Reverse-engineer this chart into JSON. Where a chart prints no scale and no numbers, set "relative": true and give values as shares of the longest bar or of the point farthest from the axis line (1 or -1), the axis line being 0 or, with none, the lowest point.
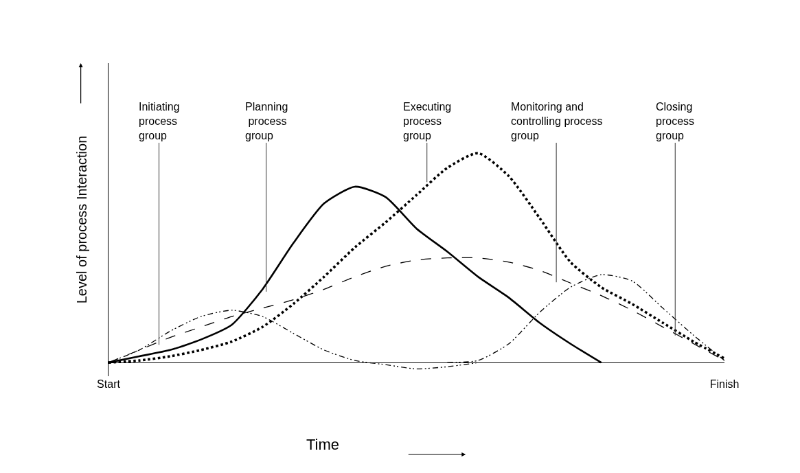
{
  "chart_data": {
    "type": "line",
    "relative": true,
    "xlabel": "Time",
    "ylabel": "Level of process Interaction",
    "categories": [
      "Start",
      null,
      null,
      null,
      null,
      null,
      null,
      null,
      null,
      null,
      null,
      null,
      null,
      null,
      null,
      null,
      null,
      null,
      null,
      null,
      "Finish"
    ],
    "marker": "none",
    "series": [
      {
        "color": "#000000",
        "line_style": "solid",
        "values": [
          0,
          0.03,
          0.06,
          0.11,
          0.18,
          0.35,
          0.57,
          0.76,
          0.84,
          0.79,
          0.64,
          0.53,
          0.41,
          0.31,
          0.19,
          0.09,
          0,
          null,
          null,
          null,
          null
        ]
      },
      {
        "color": "#000000",
        "line_style": "dotted",
        "values": [
          0,
          0.01,
          0.03,
          0.06,
          0.1,
          0.17,
          0.28,
          0.41,
          0.55,
          0.67,
          0.8,
          0.93,
          1,
          0.89,
          0.69,
          0.48,
          0.36,
          0.28,
          0.19,
          0.1,
          0.02
        ]
      },
      {
        "color": "#000000",
        "line_style": "dashed",
        "values": [
          0,
          0.06,
          0.12,
          0.17,
          0.22,
          0.26,
          0.3,
          0.35,
          0.41,
          0.46,
          0.49,
          0.5,
          0.5,
          0.48,
          0.44,
          0.38,
          0.32,
          0.25,
          0.17,
          0.09,
          0.01
        ]
      },
      {
        "color": "#000000",
        "line_style": "dashdot",
        "values": [
          0,
          0.06,
          0.15,
          0.22,
          0.25,
          0.22,
          0.14,
          0.06,
          0.01,
          -0.01,
          -0.03,
          -0.02,
          0,
          null,
          null,
          null,
          null,
          null,
          null,
          null,
          null
        ]
      },
      {
        "color": "#000000",
        "line_style": "dashdot",
        "values": [
          null,
          null,
          null,
          null,
          null,
          null,
          null,
          null,
          null,
          null,
          null,
          0,
          0.01,
          0.09,
          0.24,
          0.36,
          0.42,
          0.39,
          0.26,
          0.13,
          0.01
        ]
      }
    ],
    "annotations": [
      "Initiating\nprocess\ngroup",
      "Planning\n process\ngroup",
      "Executing\nprocess\ngroup",
      "Monitoring and\ncontrolling process\ngroup",
      "Closing\nprocess\ngroup"
    ]
  }
}
